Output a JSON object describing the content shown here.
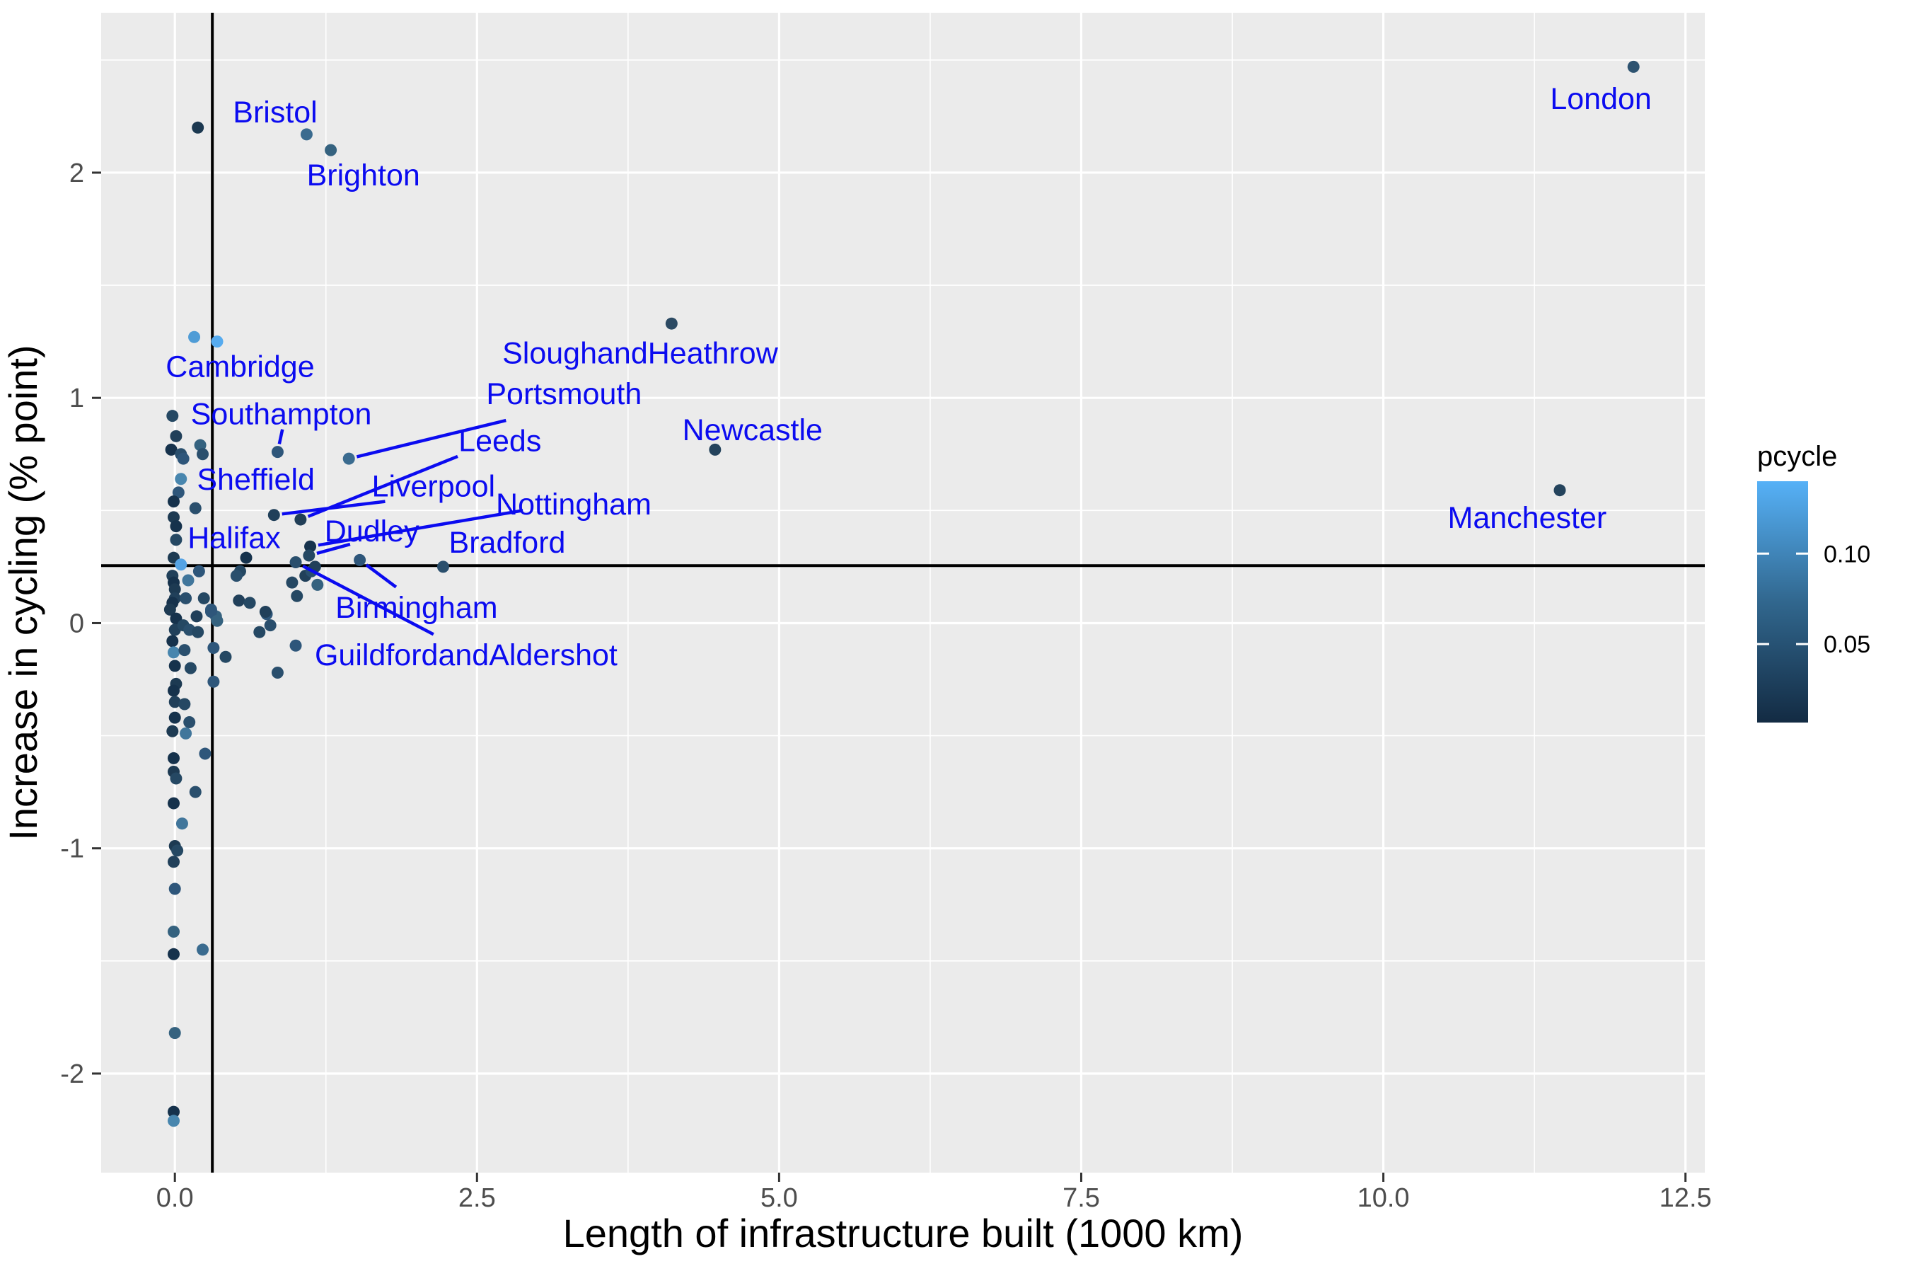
{
  "chart_data": {
    "type": "scatter",
    "title": "",
    "xlabel": "Length of infrastructure built (1000 km)",
    "ylabel": "Increase in cycling (% point)",
    "xlim": [
      -0.61,
      12.66
    ],
    "ylim": [
      -2.44,
      2.71
    ],
    "grid": true,
    "x_ticks": [
      {
        "v": 0.0,
        "label": "0.0"
      },
      {
        "v": 2.5,
        "label": "2.5"
      },
      {
        "v": 5.0,
        "label": "5.0"
      },
      {
        "v": 7.5,
        "label": "7.5"
      },
      {
        "v": 10.0,
        "label": "10.0"
      },
      {
        "v": 12.5,
        "label": "12.5"
      }
    ],
    "y_ticks": [
      {
        "v": 2,
        "label": "2"
      },
      {
        "v": 1,
        "label": "1"
      },
      {
        "v": 0,
        "label": "0"
      },
      {
        "v": -1,
        "label": "-1"
      },
      {
        "v": -2,
        "label": "-2"
      }
    ],
    "x_minor": [
      1.25,
      3.75,
      6.25,
      8.75,
      11.25
    ],
    "y_minor": [
      2.5,
      1.5,
      0.5,
      -0.5,
      -1.5
    ],
    "reference_lines": {
      "vertical_x": 0.31,
      "horizontal_y": 0.255
    },
    "colors": {
      "panel_bg": "#ebebeb",
      "grid": "#ffffff",
      "refline": "#000000",
      "label_blue": "#0b0bf0",
      "tick_gray": "#4d4d4d"
    },
    "legend": {
      "title": "pcycle",
      "position": "right",
      "gradient_top": "#56B1F7",
      "gradient_mid": "#31678E",
      "gradient_bottom": "#132B43",
      "ticks": [
        {
          "label": "0.10",
          "value": 0.1,
          "frac": 0.3
        },
        {
          "label": "0.05",
          "value": 0.05,
          "frac": 0.675
        }
      ]
    },
    "cities": [
      {
        "name": "London",
        "point": [
          12.07,
          2.47
        ],
        "color": "#2e5370",
        "label_pos": [
          11.8,
          2.33
        ],
        "leader_from": null
      },
      {
        "name": "Bristol",
        "point": [
          1.09,
          2.17
        ],
        "color": "#3a6b8f",
        "label_pos": [
          0.83,
          2.27
        ],
        "leader_from": null
      },
      {
        "name": "Brighton",
        "point": [
          1.29,
          2.1
        ],
        "color": "#35627f",
        "label_pos": [
          1.56,
          1.99
        ],
        "leader_from": null
      },
      {
        "name": "Cambridge",
        "point": [
          0.35,
          1.25
        ],
        "color": "#56abef",
        "label_pos": [
          0.54,
          1.14
        ],
        "leader_from": null
      },
      {
        "name": "SloughandHeathrow",
        "point": [
          4.11,
          1.33
        ],
        "color": "#2c4a63",
        "label_pos": [
          3.85,
          1.2
        ],
        "leader_from": null
      },
      {
        "name": "Portsmouth",
        "point": [
          1.44,
          0.73
        ],
        "color": "#3a6b8f",
        "label_pos": [
          3.22,
          1.02
        ],
        "leader_from": [
          2.74,
          0.9
        ]
      },
      {
        "name": "Southampton",
        "point": [
          0.85,
          0.76
        ],
        "color": "#2e567a",
        "label_pos": [
          0.88,
          0.93
        ],
        "leader_from": [
          0.89,
          0.86
        ]
      },
      {
        "name": "Newcastle",
        "point": [
          4.47,
          0.77
        ],
        "color": "#24435c",
        "label_pos": [
          4.78,
          0.86
        ],
        "leader_from": null
      },
      {
        "name": "Sheffield",
        "point": [
          0.05,
          0.64
        ],
        "color": "#4886ae",
        "label_pos": [
          0.67,
          0.64
        ],
        "leader_from": null
      },
      {
        "name": "Leeds",
        "point": [
          1.04,
          0.46
        ],
        "color": "#213e57",
        "label_pos": [
          2.69,
          0.81
        ],
        "leader_from": [
          2.34,
          0.74
        ]
      },
      {
        "name": "Liverpool",
        "point": [
          0.82,
          0.48
        ],
        "color": "#21405a",
        "label_pos": [
          2.14,
          0.61
        ],
        "leader_from": [
          1.74,
          0.54
        ]
      },
      {
        "name": "Halifax",
        "point": [
          0.17,
          0.51
        ],
        "color": "#2a4f6d",
        "label_pos": [
          0.49,
          0.38
        ],
        "leader_from": null
      },
      {
        "name": "Nottingham",
        "point": [
          1.12,
          0.34
        ],
        "color": "#16324c",
        "label_pos": [
          3.3,
          0.53
        ],
        "leader_from": [
          2.88,
          0.5
        ]
      },
      {
        "name": "Dudley",
        "point": [
          1.11,
          0.3
        ],
        "color": "#254863",
        "label_pos": [
          1.63,
          0.41
        ],
        "leader_from": [
          1.45,
          0.35
        ]
      },
      {
        "name": "Bradford",
        "point": [
          2.22,
          0.25
        ],
        "color": "#2a4f6d",
        "label_pos": [
          2.75,
          0.36
        ],
        "leader_from": null
      },
      {
        "name": "Birmingham",
        "point": [
          1.53,
          0.28
        ],
        "color": "#2e567a",
        "label_pos": [
          2.0,
          0.07
        ],
        "leader_from": [
          1.83,
          0.16
        ]
      },
      {
        "name": "GuildfordandAldershot",
        "point": [
          1.0,
          0.27
        ],
        "color": "#2a4f6d",
        "label_pos": [
          2.41,
          -0.14
        ],
        "leader_from": [
          2.14,
          -0.05
        ]
      },
      {
        "name": "Manchester",
        "point": [
          11.46,
          0.59
        ],
        "color": "#24435c",
        "label_pos": [
          11.19,
          0.47
        ],
        "leader_from": null
      }
    ],
    "points": [
      [
        0.19,
        2.2,
        "#1b3850"
      ],
      [
        0.16,
        1.27,
        "#4f9cd6"
      ],
      [
        -0.02,
        0.92,
        "#254863"
      ],
      [
        0.01,
        0.83,
        "#21405a"
      ],
      [
        -0.03,
        0.77,
        "#16324c"
      ],
      [
        0.05,
        0.75,
        "#2a4f6d"
      ],
      [
        0.07,
        0.73,
        "#2e567a"
      ],
      [
        0.21,
        0.79,
        "#35627f"
      ],
      [
        0.23,
        0.75,
        "#2a4f6d"
      ],
      [
        0.03,
        0.58,
        "#2e567a"
      ],
      [
        -0.01,
        0.54,
        "#16324c"
      ],
      [
        -0.01,
        0.47,
        "#1d3a52"
      ],
      [
        0.01,
        0.43,
        "#16324c"
      ],
      [
        0.01,
        0.37,
        "#254863"
      ],
      [
        -0.01,
        0.29,
        "#1d3a52"
      ],
      [
        0.05,
        0.26,
        "#55a3e4"
      ],
      [
        0.2,
        0.23,
        "#2e567a"
      ],
      [
        -0.02,
        0.21,
        "#21405a"
      ],
      [
        -0.01,
        0.18,
        "#16324c"
      ],
      [
        0.0,
        0.15,
        "#1d3a52"
      ],
      [
        0.11,
        0.19,
        "#41769b"
      ],
      [
        0.0,
        0.11,
        "#21405a"
      ],
      [
        -0.02,
        0.09,
        "#16324c"
      ],
      [
        0.09,
        0.11,
        "#2a4f6d"
      ],
      [
        0.24,
        0.11,
        "#254863"
      ],
      [
        0.3,
        0.06,
        "#2e567a"
      ],
      [
        0.34,
        0.03,
        "#35627f"
      ],
      [
        0.54,
        0.23,
        "#254863"
      ],
      [
        0.51,
        0.21,
        "#2a4f6d"
      ],
      [
        0.59,
        0.29,
        "#16324c"
      ],
      [
        0.53,
        0.1,
        "#21405a"
      ],
      [
        0.62,
        0.09,
        "#254863"
      ],
      [
        0.76,
        0.04,
        "#2e567a"
      ],
      [
        0.97,
        0.18,
        "#254863"
      ],
      [
        1.08,
        0.21,
        "#21405a"
      ],
      [
        1.13,
        0.23,
        "#2a4f6d"
      ],
      [
        1.16,
        0.25,
        "#21405a"
      ],
      [
        1.18,
        0.17,
        "#35627f"
      ],
      [
        1.01,
        0.12,
        "#254863"
      ],
      [
        1.0,
        -0.1,
        "#2e567a"
      ],
      [
        0.85,
        -0.22,
        "#2a4f6d"
      ],
      [
        -0.04,
        0.06,
        "#1d3a52"
      ],
      [
        0.01,
        0.02,
        "#16324c"
      ],
      [
        0.0,
        -0.03,
        "#21405a"
      ],
      [
        -0.02,
        -0.08,
        "#16324c"
      ],
      [
        0.07,
        -0.01,
        "#254863"
      ],
      [
        0.12,
        -0.03,
        "#2a4f6d"
      ],
      [
        0.18,
        0.03,
        "#21405a"
      ],
      [
        0.19,
        -0.04,
        "#254863"
      ],
      [
        0.3,
        0.05,
        "#2e567a"
      ],
      [
        0.35,
        0.01,
        "#35627f"
      ],
      [
        -0.01,
        -0.13,
        "#4886ae"
      ],
      [
        0.08,
        -0.12,
        "#2a4f6d"
      ],
      [
        0.0,
        -0.19,
        "#16324c"
      ],
      [
        0.13,
        -0.2,
        "#254863"
      ],
      [
        0.32,
        -0.11,
        "#2e567a"
      ],
      [
        0.42,
        -0.15,
        "#254863"
      ],
      [
        0.75,
        0.05,
        "#21405a"
      ],
      [
        0.7,
        -0.04,
        "#254863"
      ],
      [
        0.79,
        -0.01,
        "#2a4f6d"
      ],
      [
        0.32,
        -0.26,
        "#2e567a"
      ],
      [
        0.01,
        -0.27,
        "#1d3a52"
      ],
      [
        -0.01,
        -0.3,
        "#16324c"
      ],
      [
        0.0,
        -0.35,
        "#21405a"
      ],
      [
        0.08,
        -0.36,
        "#254863"
      ],
      [
        0.0,
        -0.42,
        "#16324c"
      ],
      [
        0.12,
        -0.44,
        "#2a4f6d"
      ],
      [
        -0.02,
        -0.48,
        "#1d3a52"
      ],
      [
        0.09,
        -0.49,
        "#41769b"
      ],
      [
        0.25,
        -0.58,
        "#2e567a"
      ],
      [
        -0.01,
        -0.6,
        "#16324c"
      ],
      [
        -0.01,
        -0.66,
        "#1d3a52"
      ],
      [
        0.01,
        -0.69,
        "#254863"
      ],
      [
        0.17,
        -0.75,
        "#2a4f6d"
      ],
      [
        -0.01,
        -0.8,
        "#16324c"
      ],
      [
        0.06,
        -0.89,
        "#41769b"
      ],
      [
        0.0,
        -0.99,
        "#1d3a52"
      ],
      [
        0.02,
        -1.01,
        "#254863"
      ],
      [
        -0.01,
        -1.06,
        "#21405a"
      ],
      [
        0.0,
        -1.18,
        "#2e567a"
      ],
      [
        -0.01,
        -1.37,
        "#35627f"
      ],
      [
        -0.01,
        -1.47,
        "#16324c"
      ],
      [
        0.23,
        -1.45,
        "#3a6b8f"
      ],
      [
        0.0,
        -1.82,
        "#35627f"
      ],
      [
        -0.01,
        -2.17,
        "#16324c"
      ],
      [
        -0.01,
        -2.21,
        "#4886ae"
      ]
    ]
  }
}
